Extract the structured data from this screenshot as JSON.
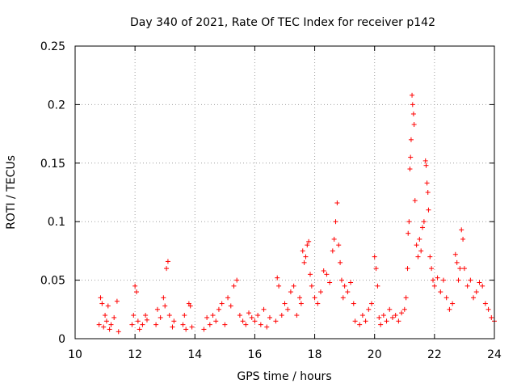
{
  "chart_data": {
    "type": "scatter",
    "title": "Day 340 of 2021, Rate Of TEC Index for receiver p142",
    "xlabel": "GPS time / hours",
    "ylabel": "ROTI / TECUs",
    "xlim": [
      10,
      24
    ],
    "ylim": [
      0,
      0.25
    ],
    "xticks": [
      10,
      12,
      14,
      16,
      18,
      20,
      22,
      24
    ],
    "xtick_labels": [
      "10",
      "12",
      "14",
      "16",
      "18",
      "20",
      "22",
      "24"
    ],
    "yticks": [
      0,
      0.05,
      0.1,
      0.15,
      0.2,
      0.25
    ],
    "ytick_labels": [
      "0",
      "0.05",
      "0.1",
      "0.15",
      "0.2",
      "0.25"
    ],
    "grid": true,
    "marker": "plus",
    "color": "#ff0000",
    "series": [
      {
        "name": "ROTI",
        "points": [
          [
            10.8,
            0.012
          ],
          [
            10.85,
            0.035
          ],
          [
            10.9,
            0.03
          ],
          [
            10.95,
            0.01
          ],
          [
            11.0,
            0.02
          ],
          [
            11.05,
            0.015
          ],
          [
            11.1,
            0.028
          ],
          [
            11.15,
            0.008
          ],
          [
            11.2,
            0.012
          ],
          [
            11.3,
            0.018
          ],
          [
            11.4,
            0.032
          ],
          [
            11.45,
            0.006
          ],
          [
            11.9,
            0.012
          ],
          [
            11.95,
            0.02
          ],
          [
            12.0,
            0.045
          ],
          [
            12.05,
            0.04
          ],
          [
            12.1,
            0.015
          ],
          [
            12.15,
            0.008
          ],
          [
            12.25,
            0.012
          ],
          [
            12.35,
            0.02
          ],
          [
            12.4,
            0.016
          ],
          [
            12.7,
            0.012
          ],
          [
            12.75,
            0.025
          ],
          [
            12.85,
            0.018
          ],
          [
            12.95,
            0.035
          ],
          [
            13.0,
            0.028
          ],
          [
            13.05,
            0.06
          ],
          [
            13.1,
            0.066
          ],
          [
            13.15,
            0.02
          ],
          [
            13.25,
            0.01
          ],
          [
            13.3,
            0.015
          ],
          [
            13.6,
            0.012
          ],
          [
            13.65,
            0.02
          ],
          [
            13.7,
            0.008
          ],
          [
            13.8,
            0.03
          ],
          [
            13.85,
            0.028
          ],
          [
            13.9,
            0.01
          ],
          [
            14.3,
            0.008
          ],
          [
            14.4,
            0.018
          ],
          [
            14.5,
            0.012
          ],
          [
            14.6,
            0.02
          ],
          [
            14.7,
            0.015
          ],
          [
            14.8,
            0.025
          ],
          [
            14.9,
            0.03
          ],
          [
            15.0,
            0.012
          ],
          [
            15.1,
            0.035
          ],
          [
            15.2,
            0.028
          ],
          [
            15.3,
            0.045
          ],
          [
            15.4,
            0.05
          ],
          [
            15.5,
            0.02
          ],
          [
            15.6,
            0.015
          ],
          [
            15.7,
            0.012
          ],
          [
            15.8,
            0.022
          ],
          [
            15.9,
            0.018
          ],
          [
            16.0,
            0.015
          ],
          [
            16.1,
            0.02
          ],
          [
            16.2,
            0.012
          ],
          [
            16.3,
            0.025
          ],
          [
            16.4,
            0.01
          ],
          [
            16.5,
            0.018
          ],
          [
            16.7,
            0.015
          ],
          [
            16.75,
            0.052
          ],
          [
            16.8,
            0.045
          ],
          [
            16.9,
            0.02
          ],
          [
            17.0,
            0.03
          ],
          [
            17.1,
            0.025
          ],
          [
            17.2,
            0.04
          ],
          [
            17.3,
            0.045
          ],
          [
            17.4,
            0.02
          ],
          [
            17.5,
            0.035
          ],
          [
            17.55,
            0.03
          ],
          [
            17.6,
            0.075
          ],
          [
            17.65,
            0.065
          ],
          [
            17.7,
            0.07
          ],
          [
            17.75,
            0.08
          ],
          [
            17.8,
            0.083
          ],
          [
            17.85,
            0.055
          ],
          [
            17.9,
            0.045
          ],
          [
            18.0,
            0.035
          ],
          [
            18.1,
            0.03
          ],
          [
            18.2,
            0.04
          ],
          [
            18.3,
            0.058
          ],
          [
            18.4,
            0.055
          ],
          [
            18.5,
            0.048
          ],
          [
            18.6,
            0.075
          ],
          [
            18.65,
            0.085
          ],
          [
            18.7,
            0.1
          ],
          [
            18.75,
            0.116
          ],
          [
            18.8,
            0.08
          ],
          [
            18.85,
            0.065
          ],
          [
            18.9,
            0.05
          ],
          [
            18.95,
            0.035
          ],
          [
            19.0,
            0.045
          ],
          [
            19.1,
            0.04
          ],
          [
            19.2,
            0.048
          ],
          [
            19.3,
            0.03
          ],
          [
            19.35,
            0.015
          ],
          [
            19.5,
            0.012
          ],
          [
            19.6,
            0.02
          ],
          [
            19.7,
            0.015
          ],
          [
            19.8,
            0.025
          ],
          [
            19.9,
            0.03
          ],
          [
            20.0,
            0.07
          ],
          [
            20.05,
            0.06
          ],
          [
            20.1,
            0.045
          ],
          [
            20.15,
            0.018
          ],
          [
            20.2,
            0.012
          ],
          [
            20.3,
            0.02
          ],
          [
            20.4,
            0.015
          ],
          [
            20.5,
            0.025
          ],
          [
            20.6,
            0.018
          ],
          [
            20.7,
            0.02
          ],
          [
            20.8,
            0.015
          ],
          [
            20.9,
            0.022
          ],
          [
            21.0,
            0.025
          ],
          [
            21.05,
            0.035
          ],
          [
            21.1,
            0.06
          ],
          [
            21.12,
            0.09
          ],
          [
            21.15,
            0.1
          ],
          [
            21.18,
            0.145
          ],
          [
            21.2,
            0.155
          ],
          [
            21.22,
            0.17
          ],
          [
            21.25,
            0.208
          ],
          [
            21.27,
            0.2
          ],
          [
            21.3,
            0.192
          ],
          [
            21.32,
            0.183
          ],
          [
            21.35,
            0.118
          ],
          [
            21.4,
            0.08
          ],
          [
            21.45,
            0.07
          ],
          [
            21.5,
            0.085
          ],
          [
            21.55,
            0.075
          ],
          [
            21.6,
            0.095
          ],
          [
            21.65,
            0.1
          ],
          [
            21.7,
            0.152
          ],
          [
            21.72,
            0.148
          ],
          [
            21.75,
            0.133
          ],
          [
            21.78,
            0.125
          ],
          [
            21.8,
            0.11
          ],
          [
            21.85,
            0.07
          ],
          [
            21.9,
            0.06
          ],
          [
            21.95,
            0.05
          ],
          [
            22.0,
            0.045
          ],
          [
            22.1,
            0.052
          ],
          [
            22.2,
            0.04
          ],
          [
            22.3,
            0.05
          ],
          [
            22.4,
            0.035
          ],
          [
            22.5,
            0.025
          ],
          [
            22.6,
            0.03
          ],
          [
            22.7,
            0.072
          ],
          [
            22.75,
            0.065
          ],
          [
            22.8,
            0.05
          ],
          [
            22.85,
            0.06
          ],
          [
            22.9,
            0.093
          ],
          [
            22.95,
            0.085
          ],
          [
            23.0,
            0.06
          ],
          [
            23.1,
            0.045
          ],
          [
            23.2,
            0.05
          ],
          [
            23.3,
            0.035
          ],
          [
            23.4,
            0.04
          ],
          [
            23.5,
            0.048
          ],
          [
            23.6,
            0.045
          ],
          [
            23.7,
            0.03
          ],
          [
            23.8,
            0.025
          ],
          [
            23.9,
            0.018
          ],
          [
            24.0,
            0.015
          ]
        ]
      }
    ]
  }
}
